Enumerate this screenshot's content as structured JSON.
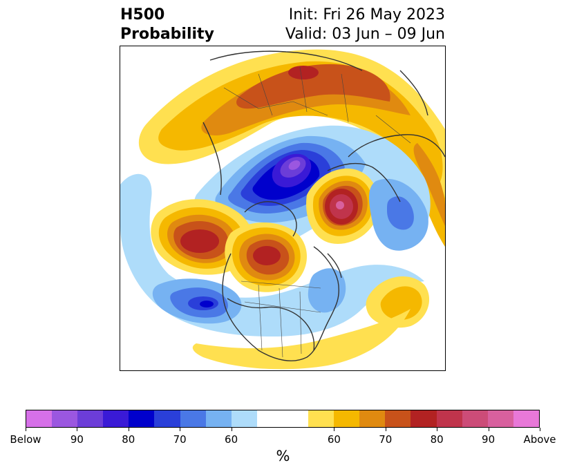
{
  "title": {
    "left_line1": "H500",
    "left_line2": "Probability",
    "right_line1": "Init: Fri 26 May 2023",
    "right_line2": "Valid: 03 Jun – 09 Jun"
  },
  "colorbar": {
    "label": "%",
    "colors": [
      "#d670e8",
      "#9b57e0",
      "#6c3dd8",
      "#3a1ad6",
      "#0000cc",
      "#2a3fd9",
      "#4a78e6",
      "#76b2f2",
      "#aedcfa",
      "#ffffff",
      "#ffffff",
      "#ffe050",
      "#f5b800",
      "#e08a10",
      "#c8521a",
      "#b22222",
      "#c0344c",
      "#cc4c78",
      "#d8609e",
      "#e878d8"
    ],
    "ticks": [
      {
        "label": "Below",
        "index": 0
      },
      {
        "label": "90",
        "index": 2
      },
      {
        "label": "80",
        "index": 4
      },
      {
        "label": "70",
        "index": 6
      },
      {
        "label": "60",
        "index": 8
      },
      {
        "label": "60",
        "index": 12
      },
      {
        "label": "70",
        "index": 14
      },
      {
        "label": "80",
        "index": 16
      },
      {
        "label": "90",
        "index": 18
      },
      {
        "label": "Above",
        "index": 20
      }
    ]
  },
  "map": {
    "projection": "polar stereographic (north)",
    "variable": "500 hPa height anomaly probability",
    "features": [
      {
        "region": "Arctic / northern Canada",
        "sign": "below",
        "probability": "90+"
      },
      {
        "region": "Scandinavia / Barents Sea",
        "sign": "above",
        "probability": "80+"
      },
      {
        "region": "Northern Europe / western Russia",
        "sign": "above",
        "probability": "70"
      },
      {
        "region": "Northeast Pacific / Gulf of Alaska",
        "sign": "above",
        "probability": "80"
      },
      {
        "region": "Central Canada",
        "sign": "above",
        "probability": "80"
      },
      {
        "region": "Western United States",
        "sign": "below",
        "probability": "80"
      },
      {
        "region": "Central North Atlantic",
        "sign": "above",
        "probability": "60"
      },
      {
        "region": "Western Europe",
        "sign": "below",
        "probability": "70"
      }
    ]
  }
}
